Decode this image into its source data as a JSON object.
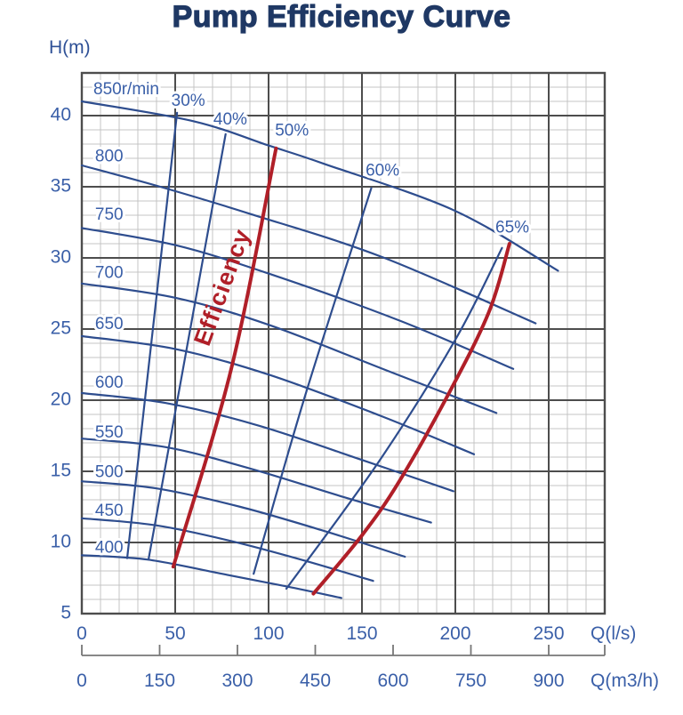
{
  "title": "Pump Efficiency Curve",
  "colors": {
    "title_navy": "#1f3864",
    "curve_blue": "#2e4d8e",
    "curve_red": "#b01f28",
    "label_blue": "#3a5fa8",
    "grid_minor": "#c4c4c4",
    "grid_major": "#4d4d4d",
    "ruler_gray": "#777777",
    "background": "#ffffff"
  },
  "chart_data": {
    "type": "line",
    "title": "Pump Efficiency Curve",
    "grid": true,
    "x_axis": {
      "label": "Q(l/s)",
      "min": 0,
      "max": 280,
      "minor_step": 10,
      "major_step": 50,
      "ticks": [
        0,
        50,
        100,
        150,
        200,
        250
      ]
    },
    "x_axis_secondary": {
      "label": "Q(m3/h)",
      "ticks": [
        0,
        150,
        300,
        450,
        600,
        750,
        900
      ],
      "ls_per_m3h": 0.2777778
    },
    "y_axis": {
      "label": "H(m)",
      "min": 5,
      "max": 43,
      "minor_step": 1,
      "major_step": 5,
      "ticks": [
        40,
        35,
        30,
        25,
        20,
        15,
        10,
        5
      ]
    },
    "pump_curves": [
      {
        "label": "850r/min",
        "rpm": 850,
        "label_pos": [
          6.2,
          41.8
        ],
        "points": [
          [
            0,
            41.0
          ],
          [
            60,
            39.6
          ],
          [
            100,
            37.9
          ],
          [
            130,
            36.6
          ],
          [
            200,
            33.3
          ],
          [
            255,
            29.1
          ]
        ]
      },
      {
        "label": "800",
        "rpm": 800,
        "label_pos": [
          7.1,
          37.1
        ],
        "points": [
          [
            0,
            36.5
          ],
          [
            42,
            35.0
          ],
          [
            90,
            33.1
          ],
          [
            160,
            30.1
          ],
          [
            243,
            25.4
          ]
        ]
      },
      {
        "label": "750",
        "rpm": 750,
        "label_pos": [
          7.1,
          33.0
        ],
        "points": [
          [
            0,
            32.1
          ],
          [
            50,
            30.9
          ],
          [
            100,
            28.9
          ],
          [
            170,
            25.6
          ],
          [
            231,
            22.2
          ]
        ]
      },
      {
        "label": "700",
        "rpm": 700,
        "label_pos": [
          7.1,
          28.9
        ],
        "points": [
          [
            0,
            28.2
          ],
          [
            50,
            27.2
          ],
          [
            100,
            25.3
          ],
          [
            165,
            22.0
          ],
          [
            222,
            19.1
          ]
        ]
      },
      {
        "label": "650",
        "rpm": 650,
        "label_pos": [
          7.1,
          25.3
        ],
        "points": [
          [
            0,
            24.5
          ],
          [
            50,
            23.6
          ],
          [
            100,
            21.8
          ],
          [
            160,
            18.9
          ],
          [
            210,
            16.2
          ]
        ]
      },
      {
        "label": "600",
        "rpm": 600,
        "label_pos": [
          7.1,
          21.2
        ],
        "points": [
          [
            0,
            20.5
          ],
          [
            45,
            19.8
          ],
          [
            95,
            18.2
          ],
          [
            150,
            15.8
          ],
          [
            199,
            13.6
          ]
        ]
      },
      {
        "label": "550",
        "rpm": 550,
        "label_pos": [
          7.1,
          17.7
        ],
        "points": [
          [
            0,
            17.3
          ],
          [
            45,
            16.7
          ],
          [
            90,
            15.2
          ],
          [
            140,
            13.2
          ],
          [
            187,
            11.4
          ]
        ]
      },
      {
        "label": "500",
        "rpm": 500,
        "label_pos": [
          7.1,
          14.9
        ],
        "points": [
          [
            0,
            14.3
          ],
          [
            40,
            13.8
          ],
          [
            85,
            12.5
          ],
          [
            130,
            10.8
          ],
          [
            173,
            9.0
          ]
        ]
      },
      {
        "label": "450",
        "rpm": 450,
        "label_pos": [
          7.1,
          12.2
        ],
        "points": [
          [
            0,
            11.7
          ],
          [
            40,
            11.2
          ],
          [
            80,
            10.1
          ],
          [
            120,
            8.7
          ],
          [
            156,
            7.3
          ]
        ]
      },
      {
        "label": "400",
        "rpm": 400,
        "label_pos": [
          7.1,
          9.6
        ],
        "points": [
          [
            0,
            9.1
          ],
          [
            35,
            8.8
          ],
          [
            75,
            7.8
          ],
          [
            110,
            6.9
          ],
          [
            139,
            6.1
          ]
        ]
      }
    ],
    "efficiency_lines": [
      {
        "label": "30%",
        "value": 30,
        "highlight": false,
        "label_pos": [
          57,
          41.0
        ],
        "points": [
          [
            24.3,
            8.9
          ],
          [
            51,
            40.2
          ]
        ]
      },
      {
        "label": "40%",
        "value": 40,
        "highlight": false,
        "label_pos": [
          79.5,
          39.7
        ],
        "points": [
          [
            35.7,
            8.8
          ],
          [
            77,
            38.7
          ]
        ]
      },
      {
        "label": "50%",
        "value": 50,
        "highlight": true,
        "label_pos": [
          112.5,
          38.9
        ],
        "points": [
          [
            49,
            8.3
          ],
          [
            80,
            22.2
          ],
          [
            104,
            37.7
          ]
        ]
      },
      {
        "label": "60%",
        "value": 60,
        "highlight": false,
        "label_pos": [
          161,
          36.1
        ],
        "points": [
          [
            92,
            7.8
          ],
          [
            120,
            20.5
          ],
          [
            155,
            34.9
          ]
        ]
      },
      {
        "label": "",
        "value": 60,
        "highlight": false,
        "label_pos": null,
        "points": [
          [
            109.5,
            6.75
          ],
          [
            158.6,
            15.6
          ],
          [
            200,
            24.25
          ],
          [
            225,
            30.7
          ]
        ]
      },
      {
        "label": "65%",
        "value": 65,
        "highlight": true,
        "label_pos": [
          230.5,
          32.1
        ],
        "points": [
          [
            124,
            6.4
          ],
          [
            150,
            10.5
          ],
          [
            170,
            14.3
          ],
          [
            197,
            20.6
          ],
          [
            218,
            26.2
          ],
          [
            229,
            31.0
          ]
        ]
      }
    ],
    "annotation": {
      "text": "Efficiency",
      "pos": [
        76,
        27.9
      ],
      "rotation": -70
    }
  }
}
